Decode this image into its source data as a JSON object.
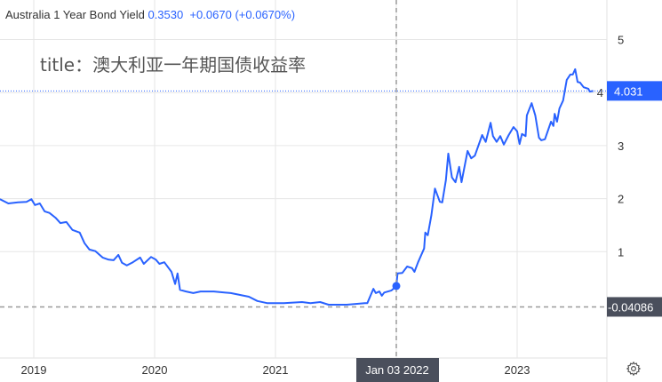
{
  "legend": {
    "symbol": "Australia 1 Year Bond Yield",
    "last": "0.3530",
    "change": "+0.0670",
    "change_pct": "(+0.0670%)"
  },
  "annotation": "title：澳大利亚一年期国债收益率",
  "colors": {
    "line": "#2962ff",
    "grid": "#e6e6e6",
    "crosshair": "#9a9a9a",
    "label_dark": "#4a4f5c",
    "price_label": "#2962ff"
  },
  "icons": {
    "settings": "gear-icon"
  },
  "chart_data": {
    "type": "line",
    "title": "",
    "xlabel": "",
    "ylabel": "",
    "grid": true,
    "x_ticks": [
      "2019",
      "2020",
      "2021",
      "2023"
    ],
    "y_ticks": [
      "1",
      "2",
      "3",
      "4",
      "5"
    ],
    "last_price_label": "4.031",
    "last_price": 4.031,
    "crosshair": {
      "x_label": "Jan 03 2022",
      "x": 2022.0,
      "y_label": "-0.04086",
      "y": -0.04086,
      "point_value": 0.353
    },
    "series": [
      {
        "x": [
          2018.72,
          2018.79,
          2018.87,
          2018.94,
          2018.98,
          2019.01,
          2019.05,
          2019.09,
          2019.13,
          2019.18,
          2019.22,
          2019.27,
          2019.32,
          2019.38,
          2019.42,
          2019.46,
          2019.51,
          2019.57,
          2019.62,
          2019.66,
          2019.7,
          2019.73,
          2019.77,
          2019.82,
          2019.88,
          2019.91,
          2019.97,
          2020.01,
          2020.04,
          2020.08,
          2020.14,
          2020.17,
          2020.19,
          2020.21,
          2020.26,
          2020.32,
          2020.38,
          2020.49,
          2020.63,
          2020.78,
          2020.85,
          2020.93,
          2021.07,
          2021.22,
          2021.29,
          2021.37,
          2021.44,
          2021.59,
          2021.74,
          2021.76,
          2021.81,
          2021.83,
          2021.86,
          2021.88,
          2021.9,
          2021.96,
          2022.0,
          2022.01,
          2022.05,
          2022.09,
          2022.13,
          2022.15,
          2022.18,
          2022.23,
          2022.24,
          2022.26,
          2022.29,
          2022.32,
          2022.36,
          2022.38,
          2022.41,
          2022.43,
          2022.46,
          2022.49,
          2022.52,
          2022.54,
          2022.59,
          2022.62,
          2022.65,
          2022.71,
          2022.74,
          2022.78,
          2022.8,
          2022.83,
          2022.86,
          2022.89,
          2022.93,
          2022.97,
          2023.0,
          2023.02,
          2023.04,
          2023.07,
          2023.08,
          2023.12,
          2023.15,
          2023.18,
          2023.2,
          2023.23,
          2023.28,
          2023.3,
          2023.31,
          2023.33,
          2023.35,
          2023.38,
          2023.41,
          2023.44,
          2023.46,
          2023.48,
          2023.5,
          2023.52,
          2023.55,
          2023.59,
          2023.6,
          2023.63
        ],
        "values": [
          1.99,
          1.91,
          1.93,
          1.94,
          1.99,
          1.88,
          1.91,
          1.76,
          1.73,
          1.64,
          1.54,
          1.56,
          1.41,
          1.36,
          1.16,
          1.04,
          1.01,
          0.89,
          0.85,
          0.84,
          0.94,
          0.79,
          0.74,
          0.8,
          0.89,
          0.77,
          0.9,
          0.85,
          0.77,
          0.8,
          0.62,
          0.39,
          0.59,
          0.28,
          0.25,
          0.22,
          0.25,
          0.25,
          0.22,
          0.15,
          0.07,
          0.03,
          0.03,
          0.05,
          0.03,
          0.05,
          0.0,
          0.0,
          0.03,
          0.03,
          0.3,
          0.22,
          0.25,
          0.17,
          0.23,
          0.27,
          0.35,
          0.59,
          0.6,
          0.72,
          0.69,
          0.62,
          0.8,
          1.06,
          1.36,
          1.31,
          1.68,
          2.19,
          1.94,
          1.93,
          2.35,
          2.85,
          2.4,
          2.31,
          2.6,
          2.31,
          2.9,
          2.76,
          2.81,
          3.2,
          3.07,
          3.43,
          3.18,
          3.07,
          3.18,
          3.02,
          3.2,
          3.35,
          3.27,
          3.03,
          3.22,
          3.18,
          3.57,
          3.8,
          3.57,
          3.15,
          3.1,
          3.12,
          3.45,
          3.37,
          3.6,
          3.45,
          3.7,
          3.85,
          4.24,
          4.34,
          4.34,
          4.44,
          4.2,
          4.19,
          4.1,
          4.07,
          4.02,
          4.03
        ]
      }
    ]
  }
}
